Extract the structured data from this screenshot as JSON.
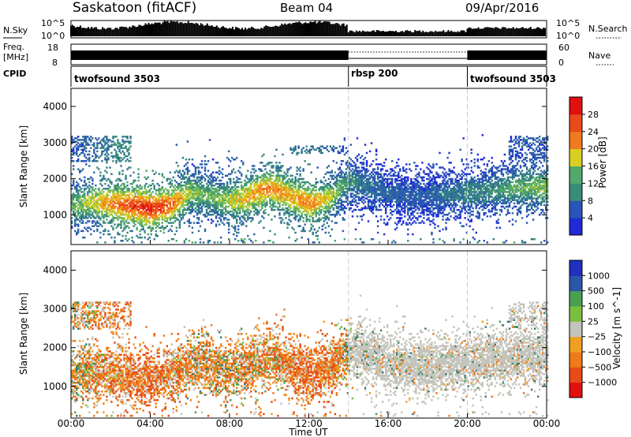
{
  "header": {
    "station": "Saskatoon (fitACF)",
    "beam": "Beam 04",
    "date": "09/Apr/2016"
  },
  "panels": {
    "nsky": {
      "label": "N.Sky",
      "ticks": [
        "10^5",
        "10^0"
      ],
      "right_ticks": [
        "10^5",
        "10^0"
      ],
      "legend": "N.Search"
    },
    "freq": {
      "label_line1": "Freq.",
      "label_line2": "[MHz]",
      "ticks": [
        "18",
        "8"
      ],
      "right_ticks": [
        "60",
        "0"
      ],
      "legend": "Nave"
    },
    "cpid": {
      "label": "CPID",
      "segments": [
        {
          "name": "twofsound 3503",
          "start_h": 0,
          "end_h": 14
        },
        {
          "name": "rbsp 200",
          "start_h": 14,
          "end_h": 20
        },
        {
          "name": "twofsound 3503",
          "start_h": 20,
          "end_h": 24
        }
      ]
    }
  },
  "colors": {
    "power": [
      "#1f2bd6",
      "#2a54b8",
      "#2f6e9a",
      "#3a8c7a",
      "#52a86a",
      "#86c24e",
      "#d8d020",
      "#f0a020",
      "#f07a1e",
      "#ea4a1a",
      "#e01010"
    ],
    "velocity": [
      "#2030c0",
      "#2a56a8",
      "#3a7a6e",
      "#4aa050",
      "#7ac040",
      "#c8c8c0",
      "#c4c4bc",
      "#f0a020",
      "#ee7a1a",
      "#e84a18",
      "#e01010"
    ],
    "ground_scatter": "#c4c4bc"
  },
  "chart_data": [
    {
      "type": "heatmap",
      "title": "Power",
      "xlabel": "Time UT",
      "ylabel": "Slant Range [km]",
      "xlim": [
        "00:00",
        "24:00"
      ],
      "ylim": [
        180,
        4500
      ],
      "x_ticks": [
        "00:00",
        "04:00",
        "08:00",
        "12:00",
        "16:00",
        "20:00",
        "00:00"
      ],
      "y_ticks": [
        "1000",
        "2000",
        "3000",
        "4000"
      ],
      "colorbar": {
        "label": "Power [dB]",
        "range": [
          0,
          32
        ],
        "ticks": [
          "4",
          "8",
          "12",
          "16",
          "20",
          "24",
          "28"
        ]
      },
      "series": [
        {
          "name": "",
          "t": [
            0.0,
            1.0,
            2.0,
            3.0,
            4.0,
            5.0,
            6.0,
            7.0,
            8.0,
            9.0,
            10.0,
            11.0,
            12.0,
            13.0,
            14.0,
            15.0,
            16.0,
            17.0,
            18.0,
            19.0,
            20.0,
            21.0,
            22.0,
            23.0,
            24.0
          ],
          "center_km": [
            1250,
            1350,
            1300,
            1250,
            1150,
            1250,
            1600,
            1500,
            1350,
            1500,
            1750,
            1500,
            1300,
            1450,
            1900,
            1800,
            1600,
            1500,
            1500,
            1550,
            1600,
            1650,
            1700,
            1750,
            1750
          ],
          "peak_db": [
            14,
            18,
            24,
            28,
            30,
            26,
            16,
            14,
            18,
            22,
            24,
            22,
            24,
            18,
            10,
            8,
            6,
            6,
            6,
            8,
            10,
            10,
            12,
            14,
            16
          ]
        }
      ]
    },
    {
      "type": "heatmap",
      "title": "Velocity",
      "xlabel": "Time UT",
      "ylabel": "Slant Range [km]",
      "xlim": [
        "00:00",
        "24:00"
      ],
      "ylim": [
        180,
        4500
      ],
      "x_ticks": [
        "00:00",
        "04:00",
        "08:00",
        "12:00",
        "16:00",
        "20:00",
        "00:00"
      ],
      "y_ticks": [
        "1000",
        "2000",
        "3000",
        "4000"
      ],
      "colorbar": {
        "label": "Velocity [m s^-1]",
        "ticks": [
          "1000",
          "500",
          "100",
          "25",
          "−25",
          "−100",
          "−500",
          "−1000"
        ]
      },
      "series": [
        {
          "name": "",
          "t": [
            0.0,
            2.0,
            4.0,
            6.0,
            8.0,
            10.0,
            12.0,
            13.5,
            14.0,
            16.0,
            18.0,
            20.0,
            22.0,
            24.0
          ],
          "mean_velocity": [
            -50,
            -200,
            -250,
            -100,
            -100,
            -150,
            -250,
            -200,
            0,
            0,
            0,
            0,
            0,
            0
          ]
        }
      ]
    }
  ]
}
